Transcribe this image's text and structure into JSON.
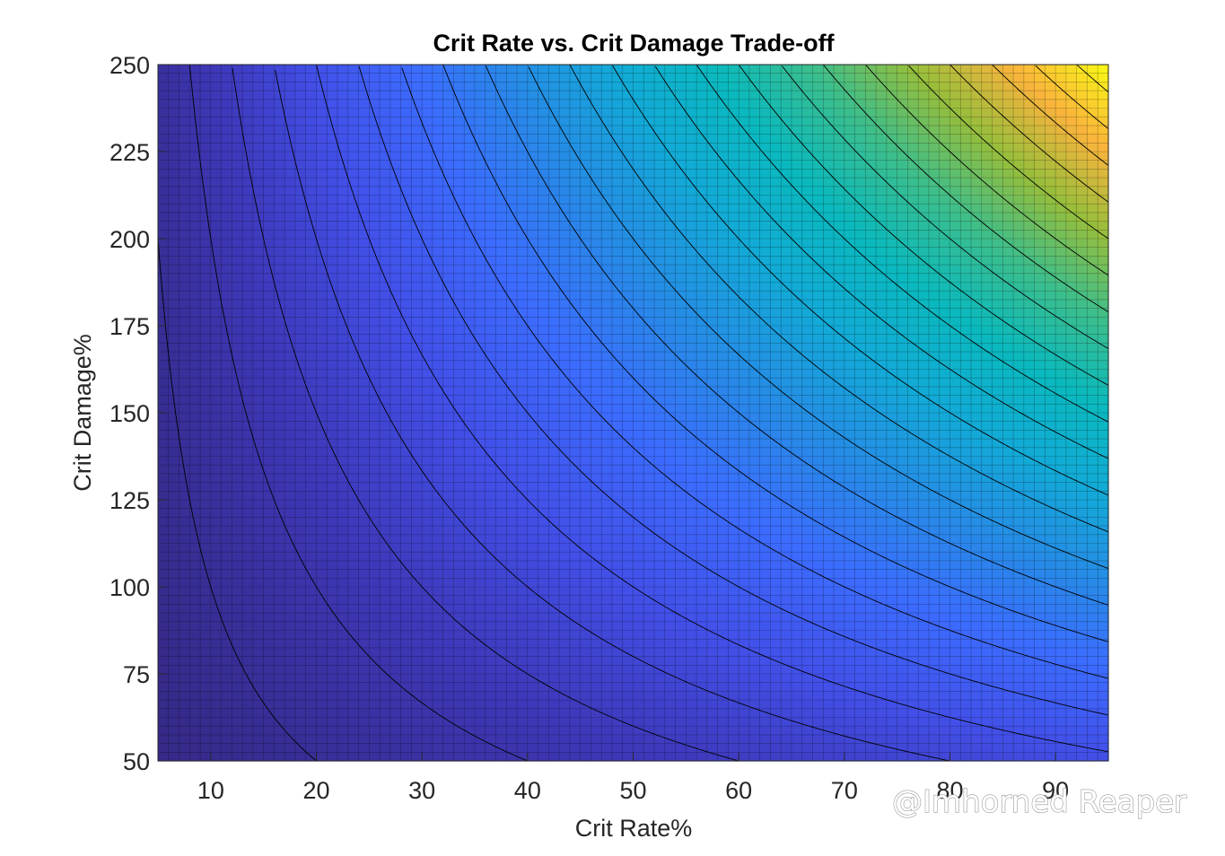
{
  "chart_data": {
    "type": "heatmap",
    "title": "Crit Rate vs. Crit Damage Trade-off",
    "xlabel": "Crit Rate%",
    "ylabel": "Crit Damage%",
    "xlim": [
      5,
      95
    ],
    "ylim": [
      50,
      250
    ],
    "xticks": [
      10,
      20,
      30,
      40,
      50,
      60,
      70,
      80,
      90
    ],
    "yticks": [
      50,
      75,
      100,
      125,
      150,
      175,
      200,
      225,
      250
    ],
    "x_grid_step": 1,
    "y_grid_step": 2.5,
    "z_formula": "crit_rate * crit_damage / 10000",
    "z_range": [
      0.025,
      2.375
    ],
    "contour_levels": [
      0.1,
      0.2,
      0.3,
      0.4,
      0.5,
      0.6,
      0.7,
      0.8,
      0.9,
      1.0,
      1.1,
      1.2,
      1.3,
      1.4,
      1.5,
      1.6,
      1.7,
      1.8,
      1.9,
      2.0,
      2.1,
      2.2,
      2.3,
      2.4
    ],
    "colormap": "parula",
    "grid": "on",
    "legend": "none"
  },
  "watermark": "@Imhorned Reaper"
}
